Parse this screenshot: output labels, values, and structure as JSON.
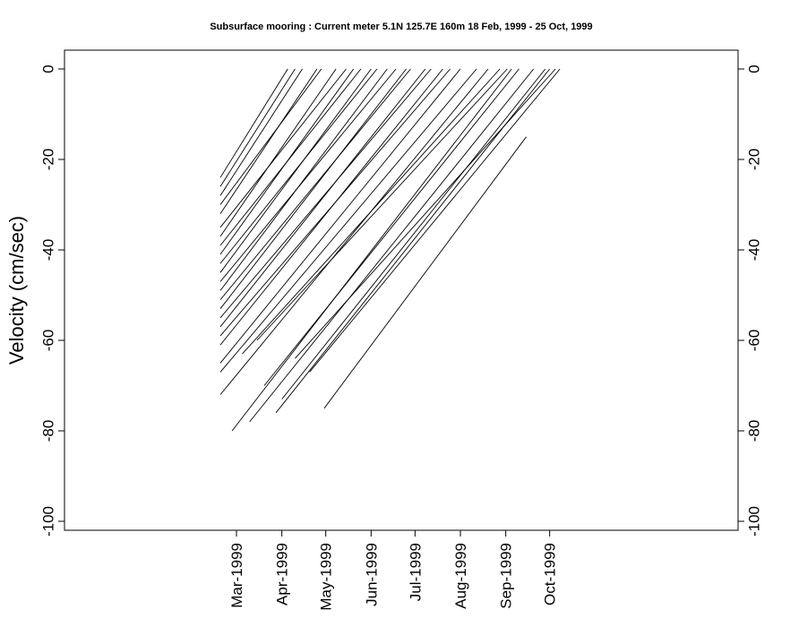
{
  "chart_data": {
    "type": "line",
    "title": "Subsurface mooring : Current meter  5.1N 125.7E   160m  18 Feb, 1999 - 25 Oct, 1999",
    "ylabel": "Velocity (cm/sec)",
    "xlabel": "",
    "ylim": [
      -100,
      0
    ],
    "y_ticks": [
      0,
      -20,
      -40,
      -60,
      -80,
      -100
    ],
    "y_tick_labels": [
      "0",
      "-20",
      "-40",
      "-60",
      "-80",
      "-100"
    ],
    "x_range": [
      "1999-02-18",
      "1999-10-25"
    ],
    "x_ticks": [
      "1999-03-01",
      "1999-04-01",
      "1999-05-01",
      "1999-06-01",
      "1999-07-01",
      "1999-08-01",
      "1999-09-01",
      "1999-10-01"
    ],
    "x_tick_labels": [
      "Mar-1999",
      "Apr-1999",
      "May-1999",
      "Jun-1999",
      "Jul-1999",
      "Aug-1999",
      "Sep-1999",
      "Oct-1999"
    ],
    "grid": false,
    "legend": "none",
    "line_color": "#000000",
    "series": [
      {
        "start": {
          "date": "1999-02-18",
          "velocity": -24
        },
        "end": {
          "date": "1999-04-05",
          "velocity": 0
        }
      },
      {
        "start": {
          "date": "1999-02-18",
          "velocity": -28
        },
        "end": {
          "date": "1999-04-15",
          "velocity": 0
        }
      },
      {
        "start": {
          "date": "1999-02-18",
          "velocity": -32
        },
        "end": {
          "date": "1999-04-25",
          "velocity": 0
        }
      },
      {
        "start": {
          "date": "1999-02-18",
          "velocity": -37
        },
        "end": {
          "date": "1999-05-08",
          "velocity": 0
        }
      },
      {
        "start": {
          "date": "1999-02-18",
          "velocity": -41
        },
        "end": {
          "date": "1999-05-20",
          "velocity": 0
        }
      },
      {
        "start": {
          "date": "1999-02-18",
          "velocity": -45
        },
        "end": {
          "date": "1999-06-01",
          "velocity": 0
        }
      },
      {
        "start": {
          "date": "1999-02-18",
          "velocity": -49
        },
        "end": {
          "date": "1999-06-12",
          "velocity": 0
        }
      },
      {
        "start": {
          "date": "1999-02-18",
          "velocity": -53
        },
        "end": {
          "date": "1999-06-25",
          "velocity": 0
        }
      },
      {
        "start": {
          "date": "1999-02-18",
          "velocity": -57
        },
        "end": {
          "date": "1999-07-08",
          "velocity": 0
        }
      },
      {
        "start": {
          "date": "1999-02-18",
          "velocity": -61
        },
        "end": {
          "date": "1999-07-20",
          "velocity": 0
        }
      },
      {
        "start": {
          "date": "1999-02-18",
          "velocity": -65
        },
        "end": {
          "date": "1999-08-01",
          "velocity": 0
        }
      },
      {
        "start": {
          "date": "1999-02-18",
          "velocity": -72
        },
        "end": {
          "date": "1999-08-20",
          "velocity": 0
        }
      },
      {
        "start": {
          "date": "1999-02-26",
          "velocity": -80
        },
        "end": {
          "date": "1999-09-05",
          "velocity": 0
        }
      },
      {
        "start": {
          "date": "1999-03-10",
          "velocity": -78
        },
        "end": {
          "date": "1999-09-20",
          "velocity": 0
        }
      },
      {
        "start": {
          "date": "1999-03-28",
          "velocity": -76
        },
        "end": {
          "date": "1999-10-01",
          "velocity": 0
        }
      },
      {
        "start": {
          "date": "1999-04-30",
          "velocity": -75
        },
        "end": {
          "date": "1999-09-15",
          "velocity": -15
        }
      },
      {
        "start": {
          "date": "1999-04-20",
          "velocity": -67
        },
        "end": {
          "date": "1999-10-08",
          "velocity": 0
        }
      },
      {
        "start": {
          "date": "1999-04-01",
          "velocity": -73
        },
        "end": {
          "date": "1999-09-28",
          "velocity": 0
        }
      },
      {
        "start": {
          "date": "1999-03-20",
          "velocity": -70
        },
        "end": {
          "date": "1999-09-10",
          "velocity": 0
        }
      },
      {
        "start": {
          "date": "1999-02-18",
          "velocity": -35
        },
        "end": {
          "date": "1999-05-15",
          "velocity": 0
        }
      },
      {
        "start": {
          "date": "1999-02-18",
          "velocity": -43
        },
        "end": {
          "date": "1999-06-05",
          "velocity": 0
        }
      },
      {
        "start": {
          "date": "1999-02-18",
          "velocity": -51
        },
        "end": {
          "date": "1999-06-28",
          "velocity": 0
        }
      },
      {
        "start": {
          "date": "1999-02-18",
          "velocity": -59
        },
        "end": {
          "date": "1999-07-25",
          "velocity": 0
        }
      },
      {
        "start": {
          "date": "1999-02-18",
          "velocity": -67
        },
        "end": {
          "date": "1999-08-12",
          "velocity": 0
        }
      },
      {
        "start": {
          "date": "1999-03-05",
          "velocity": -63
        },
        "end": {
          "date": "1999-08-28",
          "velocity": 0
        }
      },
      {
        "start": {
          "date": "1999-03-15",
          "velocity": -60
        },
        "end": {
          "date": "1999-09-02",
          "velocity": 0
        }
      },
      {
        "start": {
          "date": "1999-04-10",
          "velocity": -64
        },
        "end": {
          "date": "1999-10-05",
          "velocity": 0
        }
      },
      {
        "start": {
          "date": "1999-02-18",
          "velocity": -26
        },
        "end": {
          "date": "1999-04-10",
          "velocity": 0
        }
      },
      {
        "start": {
          "date": "1999-02-18",
          "velocity": -30
        },
        "end": {
          "date": "1999-04-28",
          "velocity": 0
        }
      },
      {
        "start": {
          "date": "1999-02-18",
          "velocity": -39
        },
        "end": {
          "date": "1999-05-25",
          "velocity": 0
        }
      },
      {
        "start": {
          "date": "1999-02-18",
          "velocity": -47
        },
        "end": {
          "date": "1999-06-18",
          "velocity": 0
        }
      },
      {
        "start": {
          "date": "1999-02-18",
          "velocity": -55
        },
        "end": {
          "date": "1999-07-12",
          "velocity": 0
        }
      }
    ]
  }
}
